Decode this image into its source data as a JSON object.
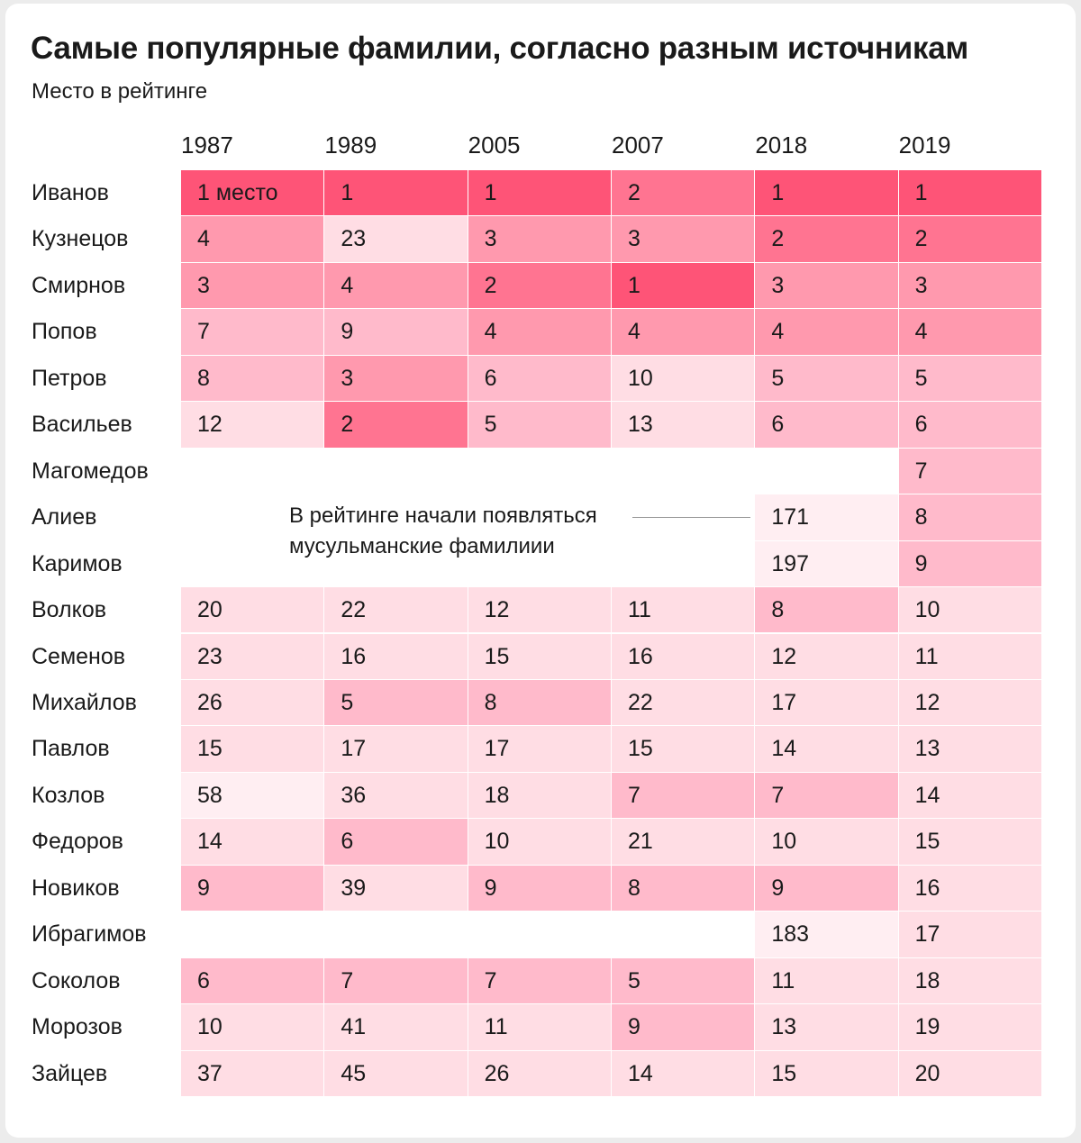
{
  "title": "Самые популярные фамилии, согласно разным источникам",
  "subtitle": "Место в рейтинге",
  "annotation": {
    "line1": "В рейтинге начали появляться",
    "line2": "мусульманские фамилиии"
  },
  "first_place_label": "1 место",
  "colors": {
    "rank_1": "#fe5477",
    "rank_2": "#ff7491",
    "rank_3_4": "#ff99ae",
    "rank_5_9": "#ffbacb",
    "rank_10_45": "#ffdde4",
    "rank_over_45": "#ffeef2",
    "background": "#ffffff"
  },
  "chart_data": {
    "type": "heatmap",
    "title": "Самые популярные фамилии, согласно разным источникам",
    "subtitle": "Место в рейтинге",
    "columns": [
      "1987",
      "1989",
      "2005",
      "2007",
      "2018",
      "2019"
    ],
    "rows": [
      {
        "name": "Иванов",
        "values": [
          1,
          1,
          1,
          2,
          1,
          1
        ]
      },
      {
        "name": "Кузнецов",
        "values": [
          4,
          23,
          3,
          3,
          2,
          2
        ]
      },
      {
        "name": "Смирнов",
        "values": [
          3,
          4,
          2,
          1,
          3,
          3
        ]
      },
      {
        "name": "Попов",
        "values": [
          7,
          9,
          4,
          4,
          4,
          4
        ]
      },
      {
        "name": "Петров",
        "values": [
          8,
          3,
          6,
          10,
          5,
          5
        ]
      },
      {
        "name": "Васильев",
        "values": [
          12,
          2,
          5,
          13,
          6,
          6
        ]
      },
      {
        "name": "Магомедов",
        "values": [
          null,
          null,
          null,
          null,
          null,
          7
        ]
      },
      {
        "name": "Алиев",
        "values": [
          null,
          null,
          null,
          null,
          171,
          8
        ]
      },
      {
        "name": "Каримов",
        "values": [
          null,
          null,
          null,
          null,
          197,
          9
        ]
      },
      {
        "name": "Волков",
        "values": [
          20,
          22,
          12,
          11,
          8,
          10
        ]
      },
      {
        "name": "Семенов",
        "values": [
          23,
          16,
          15,
          16,
          12,
          11
        ]
      },
      {
        "name": "Михайлов",
        "values": [
          26,
          5,
          8,
          22,
          17,
          12
        ]
      },
      {
        "name": "Павлов",
        "values": [
          15,
          17,
          17,
          15,
          14,
          13
        ]
      },
      {
        "name": "Козлов",
        "values": [
          58,
          36,
          18,
          7,
          7,
          14
        ]
      },
      {
        "name": "Федоров",
        "values": [
          14,
          6,
          10,
          21,
          10,
          15
        ]
      },
      {
        "name": "Новиков",
        "values": [
          9,
          39,
          9,
          8,
          9,
          16
        ]
      },
      {
        "name": "Ибрагимов",
        "values": [
          null,
          null,
          null,
          null,
          183,
          17
        ]
      },
      {
        "name": "Соколов",
        "values": [
          6,
          7,
          7,
          5,
          11,
          18
        ]
      },
      {
        "name": "Морозов",
        "values": [
          10,
          41,
          11,
          9,
          13,
          19
        ]
      },
      {
        "name": "Зайцев",
        "values": [
          37,
          45,
          26,
          14,
          15,
          20
        ]
      }
    ]
  }
}
